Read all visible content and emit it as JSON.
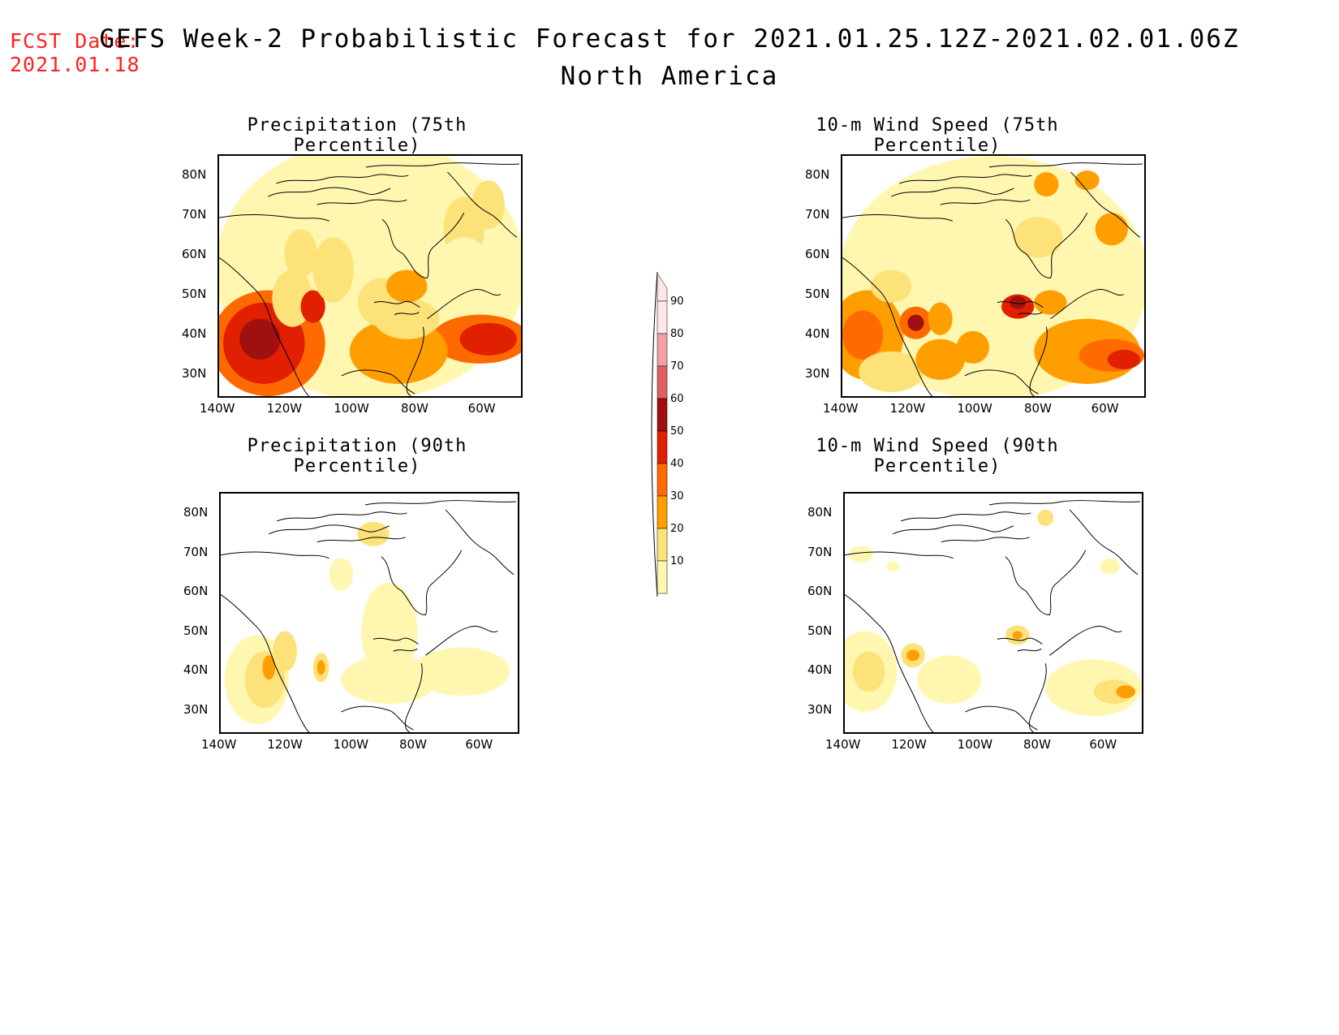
{
  "header": {
    "fcst_label": "FCST Date:",
    "fcst_date": "2021.01.18",
    "title": "GEFS Week-2 Probabilistic Forecast for 2021.01.25.12Z-2021.02.01.06Z",
    "subtitle": "North America"
  },
  "panels": [
    {
      "id": "precip75",
      "title": "Precipitation (75th Percentile)"
    },
    {
      "id": "wind75",
      "title": "10-m Wind Speed (75th Percentile)"
    },
    {
      "id": "precip90",
      "title": "Precipitation (90th Percentile)"
    },
    {
      "id": "wind90",
      "title": "10-m Wind Speed (90th Percentile)"
    }
  ],
  "axes": {
    "lat_labels": [
      "80N",
      "70N",
      "60N",
      "50N",
      "40N",
      "30N"
    ],
    "lon_labels": [
      "140W",
      "120W",
      "100W",
      "80W",
      "60W"
    ]
  },
  "legend": {
    "levels": [
      "90",
      "80",
      "70",
      "60",
      "50",
      "40",
      "30",
      "20",
      "10"
    ],
    "colors": [
      "#fde6e6",
      "#f4a0a0",
      "#e06060",
      "#a01010",
      "#e02000",
      "#ff6a00",
      "#ff9e00",
      "#fde27a",
      "#fff7b0"
    ]
  }
}
